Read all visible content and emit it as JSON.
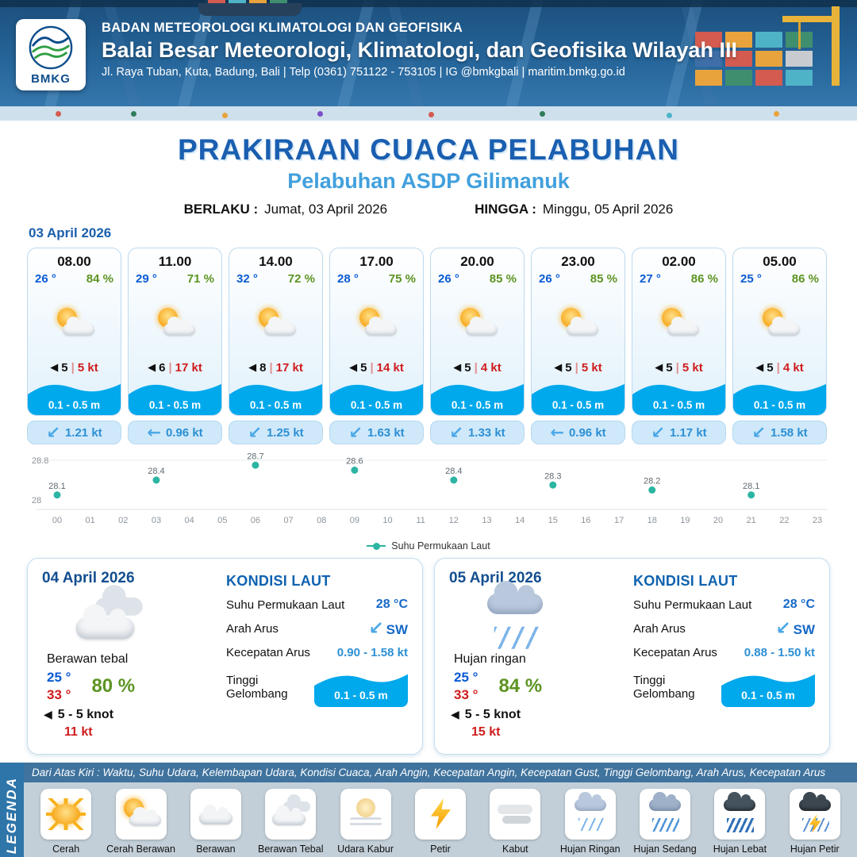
{
  "header": {
    "agency": "BADAN METEOROLOGI KLIMATOLOGI DAN GEOFISIKA",
    "office": "Balai Besar Meteorologi, Klimatologi, dan Geofisika Wilayah III",
    "contact": "Jl. Raya Tuban, Kuta, Badung, Bali | Telp (0361) 751122 - 753105 | IG @bmkgbali | maritim.bmkg.go.id",
    "logo_label": "BMKG"
  },
  "title": {
    "main": "PRAKIRAAN CUACA PELABUHAN",
    "subtitle": "Pelabuhan ASDP Gilimanuk",
    "valid_from_label": "BERLAKU :",
    "valid_from": "Jumat, 03 April 2026",
    "valid_to_label": "HINGGA :",
    "valid_to": "Minggu, 05 April 2026"
  },
  "hourly_section": {
    "date": "03 April 2026",
    "cards": [
      {
        "time": "08.00",
        "temp": "26 °",
        "humidity": "84 %",
        "icon": "sun-cloud-icon",
        "wind_speed": "5",
        "gust": "5 kt",
        "wave_height": "0.1 - 0.5 m",
        "current_speed": "1.21 kt",
        "current_dir": "SW"
      },
      {
        "time": "11.00",
        "temp": "29 °",
        "humidity": "71 %",
        "icon": "sun-cloud-icon",
        "wind_speed": "6",
        "gust": "17 kt",
        "wave_height": "0.1 - 0.5 m",
        "current_speed": "0.96 kt",
        "current_dir": "W"
      },
      {
        "time": "14.00",
        "temp": "32 °",
        "humidity": "72 %",
        "icon": "sun-cloud-icon",
        "wind_speed": "8",
        "gust": "17 kt",
        "wave_height": "0.1 - 0.5 m",
        "current_speed": "1.25 kt",
        "current_dir": "SW"
      },
      {
        "time": "17.00",
        "temp": "28 °",
        "humidity": "75 %",
        "icon": "sun-cloud-icon",
        "wind_speed": "5",
        "gust": "14 kt",
        "wave_height": "0.1 - 0.5 m",
        "current_speed": "1.63 kt",
        "current_dir": "SW"
      },
      {
        "time": "20.00",
        "temp": "26 °",
        "humidity": "85 %",
        "icon": "sun-cloud-icon",
        "wind_speed": "5",
        "gust": "4 kt",
        "wave_height": "0.1 - 0.5 m",
        "current_speed": "1.33 kt",
        "current_dir": "SW"
      },
      {
        "time": "23.00",
        "temp": "26 °",
        "humidity": "85 %",
        "icon": "sun-cloud-icon",
        "wind_speed": "5",
        "gust": "5 kt",
        "wave_height": "0.1 - 0.5 m",
        "current_speed": "0.96 kt",
        "current_dir": "W"
      },
      {
        "time": "02.00",
        "temp": "27 °",
        "humidity": "86 %",
        "icon": "sun-cloud-icon",
        "wind_speed": "5",
        "gust": "5 kt",
        "wave_height": "0.1 - 0.5 m",
        "current_speed": "1.17 kt",
        "current_dir": "SW"
      },
      {
        "time": "05.00",
        "temp": "25 °",
        "humidity": "86 %",
        "icon": "sun-cloud-icon",
        "wind_speed": "5",
        "gust": "4 kt",
        "wave_height": "0.1 - 0.5 m",
        "current_speed": "1.58 kt",
        "current_dir": "SW"
      }
    ]
  },
  "chart_data": {
    "type": "scatter",
    "title": "",
    "xlabel": "",
    "ylabel": "",
    "series_name": "Suhu Permukaan Laut",
    "x": [
      0,
      3,
      6,
      9,
      12,
      15,
      18,
      21
    ],
    "values": [
      28.1,
      28.4,
      28.7,
      28.6,
      28.4,
      28.3,
      28.2,
      28.1
    ],
    "x_ticks": [
      "00",
      "01",
      "02",
      "03",
      "04",
      "05",
      "06",
      "07",
      "08",
      "09",
      "10",
      "11",
      "12",
      "13",
      "14",
      "15",
      "16",
      "17",
      "18",
      "19",
      "20",
      "21",
      "22",
      "23"
    ],
    "ylim": [
      28,
      28.8
    ],
    "y_tick_labels": [
      "28",
      "28.8"
    ],
    "series_color": "#2bb5a2",
    "legend_position": "bottom",
    "grid": false
  },
  "daily": [
    {
      "date": "04 April 2026",
      "condition": "Berawan tebal",
      "icon": "clouds-icon",
      "temp_min": "25 °",
      "temp_max": "33 °",
      "humidity": "80 %",
      "wind": "5  - 5 knot",
      "gust": "11 kt",
      "sea_heading": "KONDISI LAUT",
      "sst_label": "Suhu Permukaan Laut",
      "sst": "28 °C",
      "current_dir_label": "Arah Arus",
      "current_dir": "SW",
      "current_speed_label": "Kecepatan Arus",
      "current_speed": "0.90 - 1.58 kt",
      "wave_label": "Tinggi Gelombang",
      "wave_height": "0.1 - 0.5 m"
    },
    {
      "date": "05 April 2026",
      "condition": "Hujan ringan",
      "icon": "rain-light-icon",
      "temp_min": "25 °",
      "temp_max": "33 °",
      "humidity": "84 %",
      "wind": "5  - 5 knot",
      "gust": "15 kt",
      "sea_heading": "KONDISI LAUT",
      "sst_label": "Suhu Permukaan Laut",
      "sst": "28 °C",
      "current_dir_label": "Arah Arus",
      "current_dir": "SW",
      "current_speed_label": "Kecepatan Arus",
      "current_speed": "0.88 - 1.50 kt",
      "wave_label": "Tinggi Gelombang",
      "wave_height": "0.1 - 0.5 m"
    }
  ],
  "legend": {
    "title": "LEGENDA",
    "note": "Dari Atas Kiri : Waktu, Suhu Udara, Kelembapan Udara, Kondisi Cuaca, Arah Angin, Kecepatan Angin, Kecepatan Gust, Tinggi Gelombang, Arah Arus, Kecepatan Arus",
    "items": [
      {
        "icon": "sun-icon",
        "label": "Cerah"
      },
      {
        "icon": "sun-cloud-icon",
        "label": "Cerah Berawan"
      },
      {
        "icon": "cloud-icon",
        "label": "Berawan"
      },
      {
        "icon": "clouds-icon",
        "label": "Berawan Tebal"
      },
      {
        "icon": "haze-icon",
        "label": "Udara Kabur"
      },
      {
        "icon": "lightning-icon",
        "label": "Petir"
      },
      {
        "icon": "fog-icon",
        "label": "Kabut"
      },
      {
        "icon": "rain-light-icon",
        "label": "Hujan Ringan"
      },
      {
        "icon": "rain-medium-icon",
        "label": "Hujan Sedang"
      },
      {
        "icon": "rain-heavy-icon",
        "label": "Hujan Lebat"
      },
      {
        "icon": "storm-icon",
        "label": "Hujan Petir"
      }
    ]
  },
  "icons": {
    "wind_arrow_glyph": "◀",
    "separator_glyph": "|",
    "arrow_glyphs": {
      "N": "↑",
      "NE": "↗",
      "E": "→",
      "SE": "↘",
      "S": "↓",
      "SW": "↙",
      "W": "←",
      "NW": "↖"
    }
  },
  "colors": {
    "accent_blue": "#1a5fb0",
    "subtitle_blue": "#41a0dd",
    "temp_blue": "#0b5bd3",
    "humidity_green": "#5d9422",
    "gust_red": "#cf1c1c",
    "wave_blue": "#00a8ec",
    "current_blue": "#2d8fd4",
    "sst_dot_teal": "#2bb5a2"
  }
}
